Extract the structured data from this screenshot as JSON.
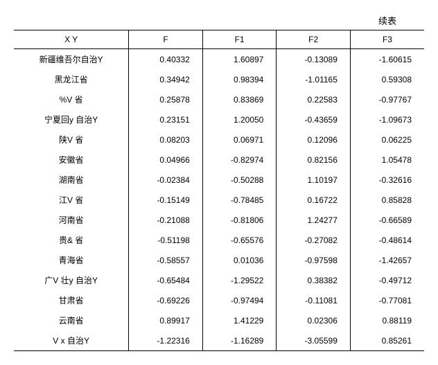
{
  "caption": "续表",
  "columns": [
    "X Y",
    "F",
    "F1",
    "F2",
    "F3"
  ],
  "col_widths": [
    "28%",
    "18%",
    "18%",
    "18%",
    "18%"
  ],
  "rows": [
    [
      "新疆维吾尔自治Y",
      "0.40332",
      "1.60897",
      "-0.13089",
      "-1.60615"
    ],
    [
      "黑龙江省",
      "0.34942",
      "0.98394",
      "-1.01165",
      "0.59308"
    ],
    [
      "%V 省",
      "0.25878",
      "0.83869",
      "0.22583",
      "-0.97767"
    ],
    [
      "宁夏回y 自治Y",
      "0.23151",
      "1.20050",
      "-0.43659",
      "-1.09673"
    ],
    [
      "陕V 省",
      "0.08203",
      "0.06971",
      "0.12096",
      "0.06225"
    ],
    [
      "安徽省",
      "0.04966",
      "-0.82974",
      "0.82156",
      "1.05478"
    ],
    [
      "湖南省",
      "-0.02384",
      "-0.50288",
      "1.10197",
      "-0.32616"
    ],
    [
      "江V 省",
      "-0.15149",
      "-0.78485",
      "0.16722",
      "0.85828"
    ],
    [
      "河南省",
      "-0.21088",
      "-0.81806",
      "1.24277",
      "-0.66589"
    ],
    [
      "贵& 省",
      "-0.51198",
      "-0.65576",
      "-0.27082",
      "-0.48614"
    ],
    [
      "青海省",
      "-0.58557",
      "0.01036",
      "-0.97598",
      "-1.42657"
    ],
    [
      "广V 壮y 自治Y",
      "-0.65484",
      "-1.29522",
      "0.38382",
      "-0.49712"
    ],
    [
      "甘肃省",
      "-0.69226",
      "-0.97494",
      "-0.11081",
      "-0.77081"
    ],
    [
      "云南省",
      "0.89917",
      "1.41229",
      "0.02306",
      "0.88119"
    ],
    [
      "V x 自治Y",
      "-1.22316",
      "-1.16289",
      "-3.05599",
      "0.85261"
    ]
  ],
  "fontsize": 12,
  "header_fontsize": 12,
  "text_color": "#000000",
  "border_color": "#000000",
  "background_color": "#ffffff"
}
